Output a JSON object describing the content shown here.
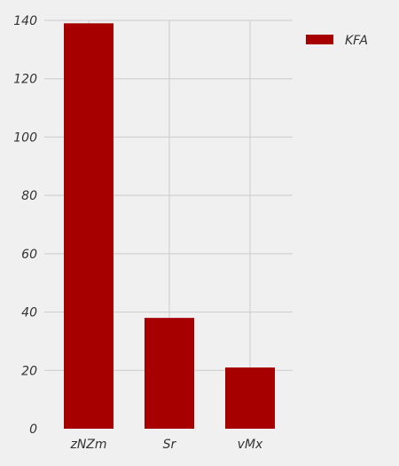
{
  "chart_data": {
    "type": "bar",
    "categories": [
      "zNZm",
      "Sr",
      "vMx"
    ],
    "series": [
      {
        "name": "KFA",
        "values": [
          139,
          38,
          21
        ],
        "color": "#a60000"
      }
    ],
    "ylim": [
      0,
      140
    ],
    "yticks": [
      0,
      20,
      40,
      60,
      80,
      100,
      120,
      140
    ],
    "grid": true,
    "legend": "top-right",
    "background": "#f0f0f0"
  }
}
